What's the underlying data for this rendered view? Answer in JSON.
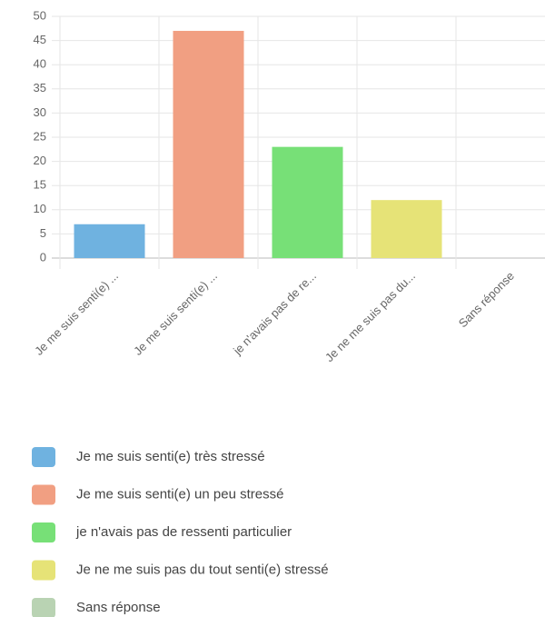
{
  "chart_data": {
    "type": "bar",
    "categories": [
      "Je me suis senti(e) ...",
      "Je me suis senti(e) ...",
      "je n'avais pas de re...",
      "Je ne me suis pas du...",
      "Sans réponse"
    ],
    "values": [
      7,
      47,
      23,
      12,
      0
    ],
    "colors": [
      "#6fb2e0",
      "#f19f82",
      "#77e077",
      "#e6e377",
      "#b9d3b3"
    ],
    "legend": [
      {
        "name": "Je me suis senti(e) très stressé",
        "color": "#6fb2e0"
      },
      {
        "name": "Je me suis senti(e) un peu stressé",
        "color": "#f19f82"
      },
      {
        "name": "je n'avais pas de ressenti particulier",
        "color": "#77e077"
      },
      {
        "name": "Je ne me suis pas du tout senti(e) stressé",
        "color": "#e6e377"
      },
      {
        "name": "Sans réponse",
        "color": "#b9d3b3"
      }
    ],
    "ylim": [
      0,
      50
    ],
    "yticks": [
      0,
      5,
      10,
      15,
      20,
      25,
      30,
      35,
      40,
      45,
      50
    ],
    "grid": true
  }
}
